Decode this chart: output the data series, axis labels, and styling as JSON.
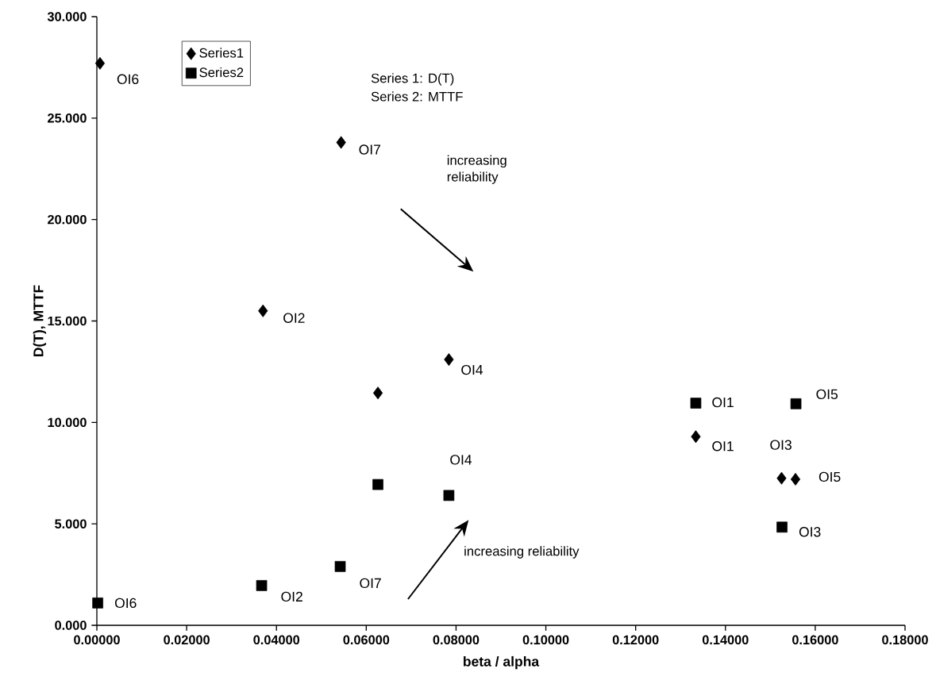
{
  "chart_data": {
    "type": "scatter",
    "xlabel": "beta / alpha",
    "ylabel": "D(T), MTTF",
    "xlim": [
      0,
      0.18
    ],
    "ylim": [
      0,
      30
    ],
    "xticks": [
      {
        "value": 0,
        "label": "0.00000"
      },
      {
        "value": 0.02,
        "label": "0.02000"
      },
      {
        "value": 0.04,
        "label": "0.04000"
      },
      {
        "value": 0.06,
        "label": "0.06000"
      },
      {
        "value": 0.08,
        "label": "0.08000"
      },
      {
        "value": 0.1,
        "label": "0.10000"
      },
      {
        "value": 0.12,
        "label": "0.12000"
      },
      {
        "value": 0.14,
        "label": "0.14000"
      },
      {
        "value": 0.16,
        "label": "0.16000"
      },
      {
        "value": 0.18,
        "label": "0.18000"
      }
    ],
    "yticks": [
      {
        "value": 0,
        "label": "0.000"
      },
      {
        "value": 5,
        "label": "5.000"
      },
      {
        "value": 10,
        "label": "10.000"
      },
      {
        "value": 15,
        "label": "15.000"
      },
      {
        "value": 20,
        "label": "20.000"
      },
      {
        "value": 25,
        "label": "25.000"
      },
      {
        "value": 30,
        "label": "30.000"
      }
    ],
    "grid": false,
    "legend": "top left",
    "series": [
      {
        "name": "Series1",
        "color": "#000000",
        "marker": "diamond",
        "x": [
          0.0007,
          0.037,
          0.0544,
          0.0626,
          0.0784,
          0.1334,
          0.1525,
          0.1556
        ],
        "values": [
          27.7,
          15.5,
          23.8,
          11.45,
          13.1,
          9.3,
          7.25,
          7.2
        ]
      },
      {
        "name": "Series2",
        "color": "#000000",
        "marker": "square",
        "x": [
          0.0002,
          0.0367,
          0.0542,
          0.0626,
          0.0784,
          0.1334,
          0.1526,
          0.1557
        ],
        "values": [
          1.1,
          1.96,
          2.9,
          6.94,
          6.4,
          10.95,
          4.84,
          10.92
        ]
      }
    ],
    "annotations": [
      "Series 1: D(T)",
      "Series 2: MTTF",
      "increasing reliability",
      "increasing reliability",
      {
        "text": "OI6",
        "x": 0.0007,
        "y": 27.7
      },
      {
        "text": "OI7",
        "x": 0.0544,
        "y": 23.8
      },
      {
        "text": "OI2",
        "x": 0.037,
        "y": 15.5
      },
      {
        "text": "OI4",
        "x": 0.0784,
        "y": 13.1
      },
      {
        "text": "OI1",
        "x": 0.1334,
        "y": 10.95
      },
      {
        "text": "OI5",
        "x": 0.1557,
        "y": 10.92
      },
      {
        "text": "OI1",
        "x": 0.1334,
        "y": 9.3
      },
      {
        "text": "OI3",
        "x": 0.1525,
        "y": 7.25
      },
      {
        "text": "OI5",
        "x": 0.1556,
        "y": 7.2
      },
      {
        "text": "OI4",
        "x": 0.0784,
        "y": 6.4
      },
      {
        "text": "OI3",
        "x": 0.1526,
        "y": 4.84
      },
      {
        "text": "OI7",
        "x": 0.0542,
        "y": 2.9
      },
      {
        "text": "OI2",
        "x": 0.0367,
        "y": 1.96
      },
      {
        "text": "OI6",
        "x": 0.0002,
        "y": 1.1
      }
    ]
  }
}
